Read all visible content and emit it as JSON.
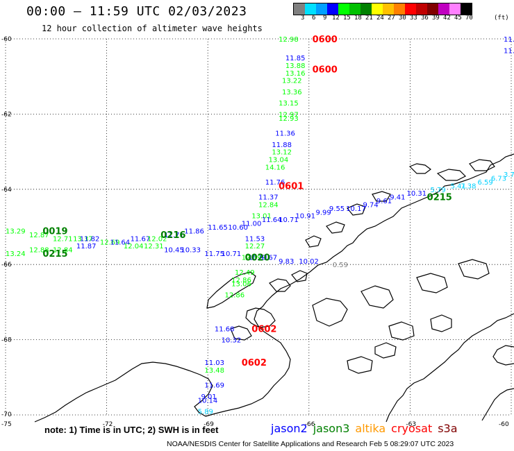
{
  "header": {
    "title": "00:00 – 11:59 UTC 02/03/2023",
    "subtitle": "12 hour collection of altimeter wave heights"
  },
  "legend": {
    "unit": "(ft)",
    "colors": [
      "#808080",
      "#00e0ff",
      "#00a0ff",
      "#0000ff",
      "#00ff00",
      "#00c000",
      "#008000",
      "#ffff00",
      "#ffc000",
      "#ff8000",
      "#ff0000",
      "#c00000",
      "#800000",
      "#c000c0",
      "#ff80ff",
      "#000000"
    ],
    "labels": [
      "3",
      "6",
      "9",
      "12",
      "15",
      "18",
      "21",
      "24",
      "27",
      "30",
      "33",
      "36",
      "39",
      "42",
      "45",
      "70"
    ]
  },
  "axes": {
    "lon_ticks": [
      "-75",
      "-72",
      "-69",
      "-66",
      "-63",
      "-60"
    ],
    "lat_ticks": [
      "-60",
      "-62",
      "-64",
      "-66",
      "-68",
      "-70"
    ]
  },
  "satellites": [
    {
      "name": "jason2",
      "color": "#0000ff"
    },
    {
      "name": "jason3",
      "color": "#008000"
    },
    {
      "name": "altika",
      "color": "#ff9900"
    },
    {
      "name": "cryosat",
      "color": "#ff0000"
    },
    {
      "name": "s3a",
      "color": "#800000"
    }
  ],
  "note": "note:  1) Time is in UTC; 2) SWH is in feet",
  "credit": "NOAA/NESDIS Center for Satellite Applications and Research    Feb  5 08:29:07 UTC 2023",
  "chart_data": {
    "type": "scatter",
    "title": "00:00 – 11:59 UTC 02/03/2023",
    "subtitle": "12 hour collection of altimeter wave heights",
    "xlim": [
      -75,
      -60
    ],
    "ylim": [
      -70,
      -60
    ],
    "times": [
      {
        "text": "0600",
        "lon": -65.9,
        "lat": -60.0,
        "color": "#ff0000"
      },
      {
        "text": "0600",
        "lon": -65.9,
        "lat": -60.8,
        "color": "#ff0000"
      },
      {
        "text": "0601",
        "lon": -66.9,
        "lat": -63.9,
        "color": "#ff0000"
      },
      {
        "text": "0602",
        "lon": -67.7,
        "lat": -67.7,
        "color": "#ff0000"
      },
      {
        "text": "0602",
        "lon": -68.0,
        "lat": -68.6,
        "color": "#ff0000"
      },
      {
        "text": "0019",
        "lon": -73.9,
        "lat": -65.1,
        "color": "#008000"
      },
      {
        "text": "0215",
        "lon": -73.9,
        "lat": -65.7,
        "color": "#008000"
      },
      {
        "text": "0216",
        "lon": -70.4,
        "lat": -65.2,
        "color": "#008000"
      },
      {
        "text": "0020",
        "lon": -67.9,
        "lat": -65.8,
        "color": "#008000"
      },
      {
        "text": "0215",
        "lon": -62.5,
        "lat": -64.2,
        "color": "#008000"
      }
    ],
    "points": [
      {
        "v": "12.98",
        "lon": -66.9,
        "lat": -60.0,
        "color": "#00ff00"
      },
      {
        "v": "11.85",
        "lon": -66.7,
        "lat": -60.5,
        "color": "#0000ff"
      },
      {
        "v": "13.88",
        "lon": -66.7,
        "lat": -60.7,
        "color": "#00ff00"
      },
      {
        "v": "13.16",
        "lon": -66.7,
        "lat": -60.9,
        "color": "#00ff00"
      },
      {
        "v": "13.22",
        "lon": -66.8,
        "lat": -61.1,
        "color": "#00ff00"
      },
      {
        "v": "13.36",
        "lon": -66.8,
        "lat": -61.4,
        "color": "#00ff00"
      },
      {
        "v": "13.15",
        "lon": -66.9,
        "lat": -61.7,
        "color": "#00ff00"
      },
      {
        "v": "12.97",
        "lon": -66.9,
        "lat": -62.0,
        "color": "#00ff00"
      },
      {
        "v": "12.93",
        "lon": -66.9,
        "lat": -62.1,
        "color": "#00ff00"
      },
      {
        "v": "11.36",
        "lon": -67.0,
        "lat": -62.5,
        "color": "#0000ff"
      },
      {
        "v": "11.88",
        "lon": -67.1,
        "lat": -62.8,
        "color": "#0000ff"
      },
      {
        "v": "13.12",
        "lon": -67.1,
        "lat": -63.0,
        "color": "#00ff00"
      },
      {
        "v": "13.04",
        "lon": -67.2,
        "lat": -63.2,
        "color": "#00ff00"
      },
      {
        "v": "14.16",
        "lon": -67.3,
        "lat": -63.4,
        "color": "#00ff00"
      },
      {
        "v": "11.76",
        "lon": -67.3,
        "lat": -63.8,
        "color": "#0000ff"
      },
      {
        "v": "11.37",
        "lon": -67.5,
        "lat": -64.2,
        "color": "#0000ff"
      },
      {
        "v": "12.84",
        "lon": -67.5,
        "lat": -64.4,
        "color": "#00ff00"
      },
      {
        "v": "13.01",
        "lon": -67.7,
        "lat": -64.7,
        "color": "#00ff00"
      },
      {
        "v": "11.64",
        "lon": -67.4,
        "lat": -64.8,
        "color": "#0000ff"
      },
      {
        "v": "11.53",
        "lon": -67.9,
        "lat": -65.3,
        "color": "#0000ff"
      },
      {
        "v": "12.27",
        "lon": -67.9,
        "lat": -65.5,
        "color": "#00ff00"
      },
      {
        "v": "12.59",
        "lon": -68.0,
        "lat": -65.8,
        "color": "#00ff00"
      },
      {
        "v": "12.49",
        "lon": -68.2,
        "lat": -66.2,
        "color": "#00ff00"
      },
      {
        "v": "12.86",
        "lon": -68.3,
        "lat": -66.4,
        "color": "#00ff00"
      },
      {
        "v": "13.06",
        "lon": -68.3,
        "lat": -66.5,
        "color": "#00ff00"
      },
      {
        "v": "12.86",
        "lon": -68.5,
        "lat": -66.8,
        "color": "#00ff00"
      },
      {
        "v": "11.68",
        "lon": -68.8,
        "lat": -67.7,
        "color": "#0000ff"
      },
      {
        "v": "10.32",
        "lon": -68.6,
        "lat": -68.0,
        "color": "#0000ff"
      },
      {
        "v": "11.03",
        "lon": -69.1,
        "lat": -68.6,
        "color": "#0000ff"
      },
      {
        "v": "13.48",
        "lon": -69.1,
        "lat": -68.8,
        "color": "#00ff00"
      },
      {
        "v": "11.69",
        "lon": -69.1,
        "lat": -69.2,
        "color": "#0000ff"
      },
      {
        "v": "9.01",
        "lon": -69.2,
        "lat": -69.5,
        "color": "#0000ff"
      },
      {
        "v": "10.14",
        "lon": -69.3,
        "lat": -69.6,
        "color": "#0000ff"
      },
      {
        "v": "5.89",
        "lon": -69.3,
        "lat": -69.9,
        "color": "#00d0ff"
      },
      {
        "v": "13.29",
        "lon": -75.0,
        "lat": -65.1,
        "color": "#00ff00"
      },
      {
        "v": "12.87",
        "lon": -74.3,
        "lat": -65.2,
        "color": "#00ff00"
      },
      {
        "v": "12.71",
        "lon": -73.6,
        "lat": -65.3,
        "color": "#00ff00"
      },
      {
        "v": "13.37",
        "lon": -73.0,
        "lat": -65.3,
        "color": "#00ff00"
      },
      {
        "v": "13.24",
        "lon": -75.0,
        "lat": -65.7,
        "color": "#00ff00"
      },
      {
        "v": "12.88",
        "lon": -74.3,
        "lat": -65.6,
        "color": "#00ff00"
      },
      {
        "v": "12.84",
        "lon": -73.6,
        "lat": -65.6,
        "color": "#00ff00"
      },
      {
        "v": "11.82",
        "lon": -72.8,
        "lat": -65.3,
        "color": "#0000ff"
      },
      {
        "v": "11.87",
        "lon": -72.9,
        "lat": -65.5,
        "color": "#0000ff"
      },
      {
        "v": "12.69",
        "lon": -72.2,
        "lat": -65.4,
        "color": "#00ff00"
      },
      {
        "v": "11.64",
        "lon": -71.9,
        "lat": -65.4,
        "color": "#0000ff"
      },
      {
        "v": "11.67",
        "lon": -71.3,
        "lat": -65.3,
        "color": "#0000ff"
      },
      {
        "v": "12.04",
        "lon": -71.5,
        "lat": -65.5,
        "color": "#00ff00"
      },
      {
        "v": "12.02",
        "lon": -70.8,
        "lat": -65.3,
        "color": "#00ff00"
      },
      {
        "v": "12.31",
        "lon": -70.9,
        "lat": -65.5,
        "color": "#00ff00"
      },
      {
        "v": "11.71",
        "lon": -70.3,
        "lat": -65.2,
        "color": "#0000ff"
      },
      {
        "v": "11.86",
        "lon": -69.7,
        "lat": -65.1,
        "color": "#0000ff"
      },
      {
        "v": "11.65",
        "lon": -69.0,
        "lat": -65.0,
        "color": "#0000ff"
      },
      {
        "v": "10.45",
        "lon": -70.3,
        "lat": -65.6,
        "color": "#0000ff"
      },
      {
        "v": "10.33",
        "lon": -69.8,
        "lat": -65.6,
        "color": "#0000ff"
      },
      {
        "v": "11.75",
        "lon": -69.1,
        "lat": -65.7,
        "color": "#0000ff"
      },
      {
        "v": "10.71",
        "lon": -68.6,
        "lat": -65.7,
        "color": "#0000ff"
      },
      {
        "v": "10.60",
        "lon": -68.4,
        "lat": -65.0,
        "color": "#0000ff"
      },
      {
        "v": "11.00",
        "lon": -68.0,
        "lat": -64.9,
        "color": "#0000ff"
      },
      {
        "v": "10.91",
        "lon": -67.8,
        "lat": -65.8,
        "color": "#0000ff"
      },
      {
        "v": "10.71",
        "lon": -66.9,
        "lat": -64.8,
        "color": "#0000ff"
      },
      {
        "v": "10.91",
        "lon": -66.4,
        "lat": -64.7,
        "color": "#0000ff"
      },
      {
        "v": "9.99",
        "lon": -65.8,
        "lat": -64.6,
        "color": "#0000ff"
      },
      {
        "v": "9.55",
        "lon": -65.4,
        "lat": -64.5,
        "color": "#0000ff"
      },
      {
        "v": "10.17",
        "lon": -64.9,
        "lat": -64.5,
        "color": "#0000ff"
      },
      {
        "v": "9.74",
        "lon": -64.4,
        "lat": -64.4,
        "color": "#0000ff"
      },
      {
        "v": "9.61",
        "lon": -64.0,
        "lat": -64.3,
        "color": "#0000ff"
      },
      {
        "v": "9.41",
        "lon": -63.6,
        "lat": -64.2,
        "color": "#0000ff"
      },
      {
        "v": "10.31",
        "lon": -63.1,
        "lat": -64.1,
        "color": "#0000ff"
      },
      {
        "v": "9.67",
        "lon": -67.4,
        "lat": -65.8,
        "color": "#0000ff"
      },
      {
        "v": "9.83",
        "lon": -66.9,
        "lat": -65.9,
        "color": "#0000ff"
      },
      {
        "v": "10.02",
        "lon": -66.3,
        "lat": -65.9,
        "color": "#0000ff"
      },
      {
        "v": "0.59",
        "lon": -65.3,
        "lat": -66.0,
        "color": "#808080"
      },
      {
        "v": "5.79",
        "lon": -62.4,
        "lat": -64.0,
        "color": "#00d0ff"
      },
      {
        "v": "5.41",
        "lon": -61.8,
        "lat": -63.9,
        "color": "#00d0ff"
      },
      {
        "v": "7.38",
        "lon": -61.5,
        "lat": -63.9,
        "color": "#00d0ff"
      },
      {
        "v": "6.59",
        "lon": -61.0,
        "lat": -63.8,
        "color": "#00d0ff"
      },
      {
        "v": "6.73",
        "lon": -60.6,
        "lat": -63.7,
        "color": "#00d0ff"
      },
      {
        "v": "3.79",
        "lon": -60.2,
        "lat": -63.6,
        "color": "#00d0ff"
      },
      {
        "v": "11.8",
        "lon": -60.2,
        "lat": -60.0,
        "color": "#0000ff"
      },
      {
        "v": "11.",
        "lon": -60.0,
        "lat": -60.3,
        "color": "#0000ff"
      }
    ]
  }
}
